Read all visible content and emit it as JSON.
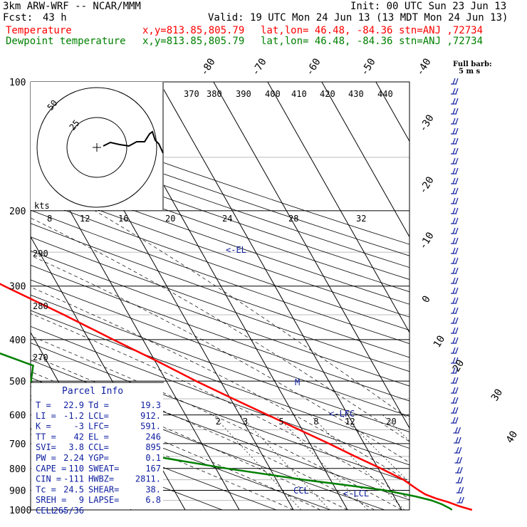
{
  "header": {
    "model": "3km ARW-WRF -- NCAR/MMM",
    "init": "Init: 00 UTC Sun 23 Jun 13",
    "fcst_label": "Fcst:",
    "fcst_value": "43 h",
    "valid": "Valid: 19 UTC Mon 24 Jun 13 (13 MDT Mon 24 Jun 13)",
    "temp_label": "Temperature",
    "dew_label": "Dewpoint temperature",
    "xy": "x,y=813.85,805.79",
    "latlon": "lat,lon= 46.48, -84.36",
    "stn": "stn=ANJ ,72734",
    "temp_color": "#ff0000",
    "dew_color": "#008000"
  },
  "chart_data": {
    "type": "line",
    "chart_kind": "skew-T log-P",
    "pressure_levels": [
      100,
      200,
      300,
      400,
      500,
      600,
      700,
      800,
      900,
      1000
    ],
    "isotherm_labels": [
      "-80",
      "-70",
      "-60",
      "-50",
      "-40",
      "-30",
      "-20",
      "-10",
      "0",
      "10",
      "20",
      "30",
      "40"
    ],
    "theta_labels_top": [
      "370",
      "380",
      "390",
      "400",
      "410",
      "420",
      "430",
      "440"
    ],
    "theta_labels_left": [
      "290",
      "280",
      "270"
    ],
    "mixing_ratio_labels": [
      "2",
      "3",
      "5",
      "8",
      "12",
      "20"
    ],
    "hodo_speed_labels": [
      "8",
      "12",
      "16",
      "20",
      "24",
      "28",
      "32"
    ],
    "hodo_unit": "kts",
    "hodo_rings": [
      "50",
      "25"
    ],
    "barb_legend": [
      "Full barb:",
      "5 m s"
    ],
    "levels_text": {
      "el": "<-EL",
      "lfc": "<-LFC",
      "lcl": "<-LCL",
      "ccl": "CCL",
      "m": "M"
    },
    "series": [
      {
        "name": "Temperature",
        "color": "#ff0000",
        "points": [
          [
            1000,
            23.0
          ],
          [
            980,
            21.0
          ],
          [
            960,
            19.5
          ],
          [
            940,
            17.5
          ],
          [
            920,
            16.0
          ],
          [
            900,
            15.2
          ],
          [
            850,
            13.5
          ],
          [
            800,
            10.5
          ],
          [
            750,
            7.0
          ],
          [
            700,
            3.5
          ],
          [
            650,
            -0.5
          ],
          [
            600,
            -4.8
          ],
          [
            550,
            -9.5
          ],
          [
            500,
            -14.5
          ],
          [
            450,
            -19.5
          ],
          [
            400,
            -25.5
          ],
          [
            350,
            -32.0
          ],
          [
            300,
            -40.0
          ],
          [
            250,
            -49.0
          ],
          [
            200,
            -55.5
          ],
          [
            180,
            -57.0
          ],
          [
            160,
            -57.0
          ],
          [
            150,
            -54.5
          ],
          [
            140,
            -53.5
          ],
          [
            130,
            -47.0
          ],
          [
            120,
            -45.0
          ],
          [
            110,
            -43.5
          ],
          [
            100,
            -42.5
          ]
        ]
      },
      {
        "name": "Dewpoint temperature",
        "color": "#008000",
        "points": [
          [
            1000,
            19.3
          ],
          [
            990,
            19.0
          ],
          [
            970,
            18.0
          ],
          [
            950,
            16.5
          ],
          [
            930,
            14.0
          ],
          [
            900,
            9.0
          ],
          [
            870,
            1.0
          ],
          [
            850,
            -5.0
          ],
          [
            800,
            -18.0
          ],
          [
            750,
            -30.0
          ],
          [
            720,
            -38.0
          ],
          [
            700,
            -40.0
          ],
          [
            650,
            -42.5
          ],
          [
            600,
            -44.0
          ],
          [
            550,
            -45.0
          ],
          [
            500,
            -45.0
          ],
          [
            460,
            -43.0
          ],
          [
            430,
            -48.0
          ],
          [
            400,
            -53.0
          ],
          [
            350,
            -60.0
          ],
          [
            320,
            -63.0
          ],
          [
            300,
            -65.0
          ],
          [
            250,
            -70.0
          ],
          [
            200,
            -74.0
          ],
          [
            160,
            -80.0
          ],
          [
            130,
            -83.0
          ],
          [
            100,
            -85.0
          ]
        ]
      }
    ]
  },
  "parcel": {
    "title": "Parcel Info",
    "rows": [
      [
        "T  =",
        "22.9",
        "Td =",
        "19.3"
      ],
      [
        "LI =",
        "-1.2",
        "LCL=",
        "912."
      ],
      [
        "K  =",
        "-3",
        "LFC=",
        "591."
      ],
      [
        "TT =",
        "42",
        "EL =",
        "246"
      ],
      [
        "SVI=",
        "3.8",
        "CCL=",
        "895"
      ],
      [
        "PW =",
        "2.24",
        "YGP=",
        "0.1"
      ],
      [
        "CAPE =",
        "110",
        "SWEAT=",
        "167"
      ],
      [
        "CIN =",
        "-111",
        "HWBZ=",
        "2811."
      ],
      [
        "Tc =",
        "24.5",
        "SHEAR=",
        "38."
      ],
      [
        "SREH =",
        "9",
        "LAPSE=",
        "6.8"
      ],
      [
        "CELL =",
        "265/36",
        "",
        ""
      ]
    ]
  }
}
